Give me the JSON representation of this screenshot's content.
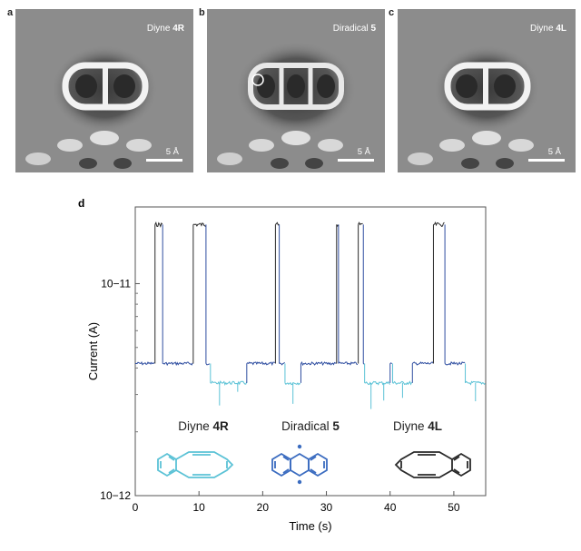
{
  "panels": [
    {
      "letter": "a",
      "title": "Diyne ",
      "title_bold": "4R",
      "scale": "5 Å"
    },
    {
      "letter": "b",
      "title": "Diradical ",
      "title_bold": "5",
      "scale": "5 Å"
    },
    {
      "letter": "c",
      "title": "Diyne ",
      "title_bold": "4L",
      "scale": "5 Å"
    }
  ],
  "chart_data": {
    "panel_letter": "d",
    "type": "line",
    "xlabel": "Time (s)",
    "ylabel": "Current (A)",
    "xlim": [
      0,
      55
    ],
    "ylim": [
      1e-12,
      2.3e-11
    ],
    "yscale": "log",
    "xticks": [
      0,
      10,
      20,
      30,
      40,
      50
    ],
    "yticks": [
      {
        "value": 1e-12,
        "label": "10−12"
      },
      {
        "value": 1e-11,
        "label": "10−11"
      }
    ],
    "levels": {
      "high": 1.9e-11,
      "mid": 4.2e-12,
      "low": 3.4e-12
    },
    "series": [
      {
        "state": "high",
        "color": "#2a2a2a",
        "segments": [
          [
            3.1,
            4.3
          ],
          [
            9.1,
            11.1
          ],
          [
            22.0,
            22.6
          ],
          [
            31.6,
            31.9
          ],
          [
            35.0,
            35.8
          ],
          [
            46.8,
            48.6
          ]
        ]
      },
      {
        "state": "mid",
        "color": "#2e4da0",
        "segments": [
          [
            0,
            3.1
          ],
          [
            4.3,
            9.1
          ],
          [
            11.1,
            11.8
          ],
          [
            17.5,
            22.0
          ],
          [
            22.6,
            23.5
          ],
          [
            26.0,
            31.6
          ],
          [
            31.9,
            35.0
          ],
          [
            35.8,
            36.0
          ],
          [
            40.0,
            40.4
          ],
          [
            43.5,
            46.8
          ],
          [
            48.6,
            51.8
          ]
        ]
      },
      {
        "state": "low",
        "color": "#5bc2d6",
        "segments": [
          [
            11.8,
            17.5
          ],
          [
            23.5,
            26.0
          ],
          [
            36.0,
            40.0
          ],
          [
            40.4,
            43.5
          ],
          [
            51.8,
            55.0
          ]
        ]
      }
    ],
    "structures": [
      {
        "label": "Diyne ",
        "label_bold": "4R",
        "color": "#5bc2d6"
      },
      {
        "label": "Diradical ",
        "label_bold": "5",
        "color": "#3b6cc0"
      },
      {
        "label": "Diyne ",
        "label_bold": "4L",
        "color": "#2a2a2a"
      }
    ]
  }
}
